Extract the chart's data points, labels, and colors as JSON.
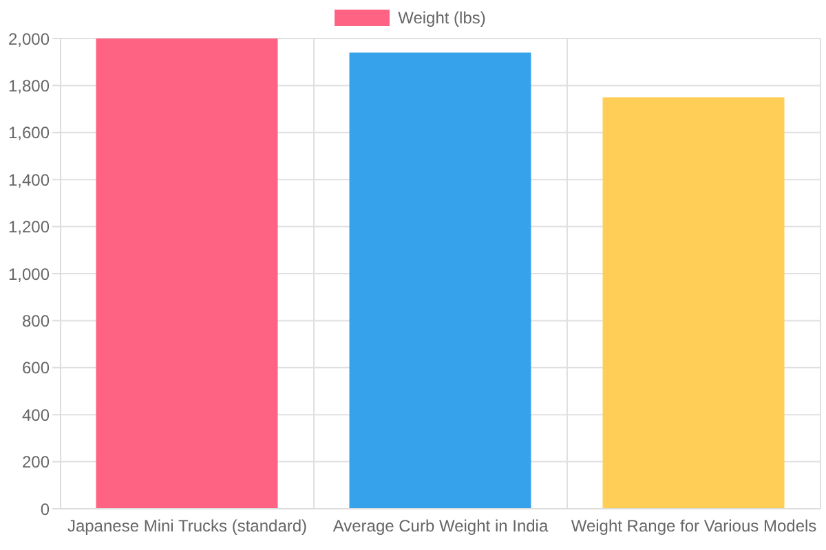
{
  "chart_data": {
    "type": "bar",
    "categories": [
      "Japanese Mini Trucks (standard)",
      "Average Curb Weight in India",
      "Weight Range for Various Models"
    ],
    "series": [
      {
        "name": "Weight (lbs)",
        "color": "#ff6384",
        "colors": [
          "#ff6384",
          "#36a2eb",
          "#ffce56"
        ],
        "values": [
          2000,
          1940,
          1750
        ]
      }
    ],
    "ylim": [
      0,
      2000
    ],
    "yticks": [
      {
        "value": 0,
        "label": "0"
      },
      {
        "value": 200,
        "label": "200"
      },
      {
        "value": 400,
        "label": "400"
      },
      {
        "value": 600,
        "label": "600"
      },
      {
        "value": 800,
        "label": "800"
      },
      {
        "value": 1000,
        "label": "1,000"
      },
      {
        "value": 1200,
        "label": "1,200"
      },
      {
        "value": 1400,
        "label": "1,400"
      },
      {
        "value": 1600,
        "label": "1,600"
      },
      {
        "value": 1800,
        "label": "1,800"
      },
      {
        "value": 2000,
        "label": "2,000"
      }
    ],
    "grid": true,
    "legend": "top"
  }
}
